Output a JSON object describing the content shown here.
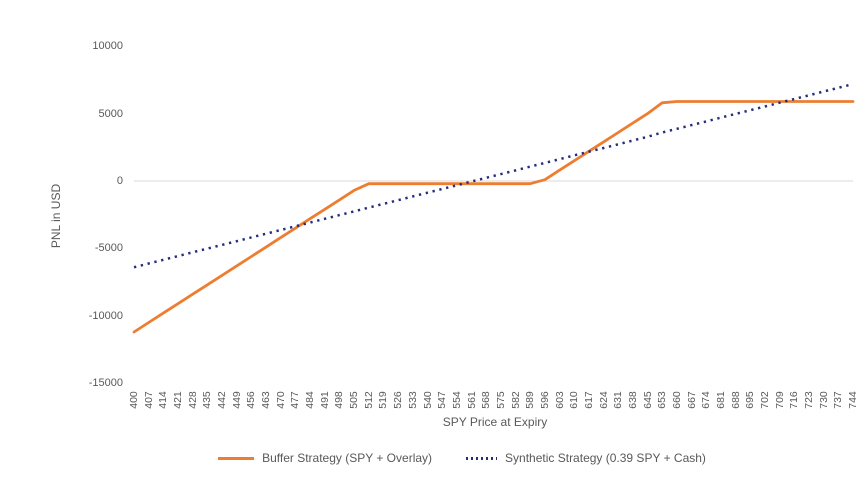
{
  "chart": {
    "title": "",
    "y_axis": {
      "title": "PNL in USD",
      "tick_labels": [
        "10000",
        "5000",
        "0",
        "-5000",
        "-10000",
        "-15000"
      ],
      "tick_values": [
        10000,
        5000,
        0,
        -5000,
        -10000,
        -15000
      ]
    },
    "x_axis": {
      "title": "SPY Price at Expiry",
      "labels": [
        "400",
        "407",
        "414",
        "421",
        "428",
        "435",
        "442",
        "449",
        "456",
        "463",
        "470",
        "477",
        "484",
        "491",
        "498",
        "505",
        "512",
        "519",
        "526",
        "533",
        "540",
        "547",
        "554",
        "561",
        "568",
        "575",
        "582",
        "589",
        "596",
        "603",
        "610",
        "617",
        "624",
        "631",
        "638",
        "645",
        "653",
        "660",
        "667",
        "674",
        "681",
        "688",
        "695",
        "702",
        "709",
        "716",
        "723",
        "730",
        "737",
        "744"
      ]
    },
    "legend": [
      {
        "label": "Buffer Strategy (SPY + Overlay)",
        "color": "#ED7D31",
        "style": "solid"
      },
      {
        "label": "Synthetic Strategy (0.39 SPY + Cash)",
        "color": "#232D7E",
        "style": "dotted"
      }
    ],
    "colors": {
      "buffer_line": "#ED7D31",
      "synthetic_line": "#232D7E",
      "axis_line": "#D9D9D9",
      "text": "#595959",
      "background": "#FFFFFF"
    }
  },
  "chart_data": {
    "type": "line",
    "title": "",
    "xlabel": "SPY Price at Expiry",
    "ylabel": "PNL in USD",
    "ylim": [
      -15000,
      10000
    ],
    "grid": false,
    "legend_position": "bottom",
    "categories": [
      400,
      407,
      414,
      421,
      428,
      435,
      442,
      449,
      456,
      463,
      470,
      477,
      484,
      491,
      498,
      505,
      512,
      519,
      526,
      533,
      540,
      547,
      554,
      561,
      568,
      575,
      582,
      589,
      596,
      603,
      610,
      617,
      624,
      631,
      638,
      645,
      653,
      660,
      667,
      674,
      681,
      688,
      695,
      702,
      709,
      716,
      723,
      730,
      737,
      744
    ],
    "series": [
      {
        "name": "Buffer Strategy (SPY + Overlay)",
        "color": "#ED7D31",
        "line_style": "solid",
        "values": [
          -11200,
          -10500,
          -9800,
          -9100,
          -8400,
          -7700,
          -7000,
          -6300,
          -5600,
          -4900,
          -4200,
          -3500,
          -2800,
          -2100,
          -1400,
          -700,
          -200,
          -200,
          -200,
          -200,
          -200,
          -200,
          -200,
          -200,
          -200,
          -200,
          -200,
          -200,
          100,
          800,
          1500,
          2200,
          2900,
          3600,
          4300,
          5000,
          5800,
          5900,
          5900,
          5900,
          5900,
          5900,
          5900,
          5900,
          5900,
          5900,
          5900,
          5900,
          5900,
          5900
        ]
      },
      {
        "name": "Synthetic Strategy (0.39 SPY + Cash)",
        "color": "#232D7E",
        "line_style": "dotted",
        "values": [
          -6399,
          -6123,
          -5846,
          -5570,
          -5293,
          -5017,
          -4740,
          -4464,
          -4187,
          -3911,
          -3634,
          -3358,
          -3081,
          -2805,
          -2528,
          -2252,
          -1975,
          -1699,
          -1422,
          -1146,
          -869,
          -593,
          -316,
          -40,
          237,
          514,
          790,
          1067,
          1343,
          1620,
          1896,
          2173,
          2449,
          2726,
          3002,
          3279,
          3595,
          3871,
          4148,
          4424,
          4701,
          4977,
          5254,
          5530,
          5807,
          6083,
          6360,
          6636,
          6913,
          7189
        ]
      }
    ]
  }
}
